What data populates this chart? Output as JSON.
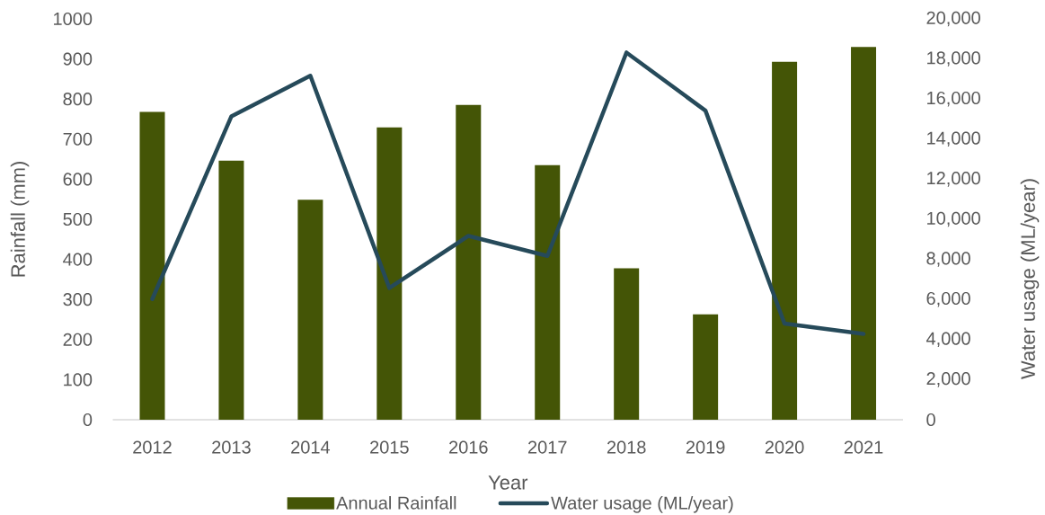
{
  "chart_data": {
    "type": "bar",
    "xlabel": "Year",
    "ylabel": "Rainfall (mm)",
    "y2label": "Water usage (ML/year)",
    "categories": [
      "2012",
      "2013",
      "2014",
      "2015",
      "2016",
      "2017",
      "2018",
      "2019",
      "2020",
      "2021"
    ],
    "ylim": [
      0,
      1000
    ],
    "yticks": [
      0,
      100,
      200,
      300,
      400,
      500,
      600,
      700,
      800,
      900,
      1000
    ],
    "y2lim": [
      0,
      20000
    ],
    "y2ticks": [
      0,
      {
        "value": 2000,
        "label": "2,000"
      },
      {
        "value": 4000,
        "label": "4,000"
      },
      {
        "value": 6000,
        "label": "6,000"
      },
      {
        "value": 8000,
        "label": "8,000"
      },
      {
        "value": 10000,
        "label": "10,000"
      },
      {
        "value": 12000,
        "label": "12,000"
      },
      {
        "value": 14000,
        "label": "14,000"
      },
      {
        "value": 16000,
        "label": "16,000"
      },
      {
        "value": 18000,
        "label": "18,000"
      },
      {
        "value": 20000,
        "label": "20,000"
      }
    ],
    "series": [
      {
        "name": "Annual Rainfall",
        "color": "#445506",
        "values": [
          768,
          646,
          549,
          729,
          785,
          635,
          378,
          263,
          893,
          930
        ]
      },
      {
        "name": "Water usage (ML/year)",
        "type": "line",
        "axis": "y2",
        "color": "#264a5a",
        "values": [
          6020,
          15130,
          17160,
          6570,
          9170,
          8170,
          18320,
          15420,
          4800,
          4280
        ]
      }
    ],
    "legend": "bottom"
  }
}
